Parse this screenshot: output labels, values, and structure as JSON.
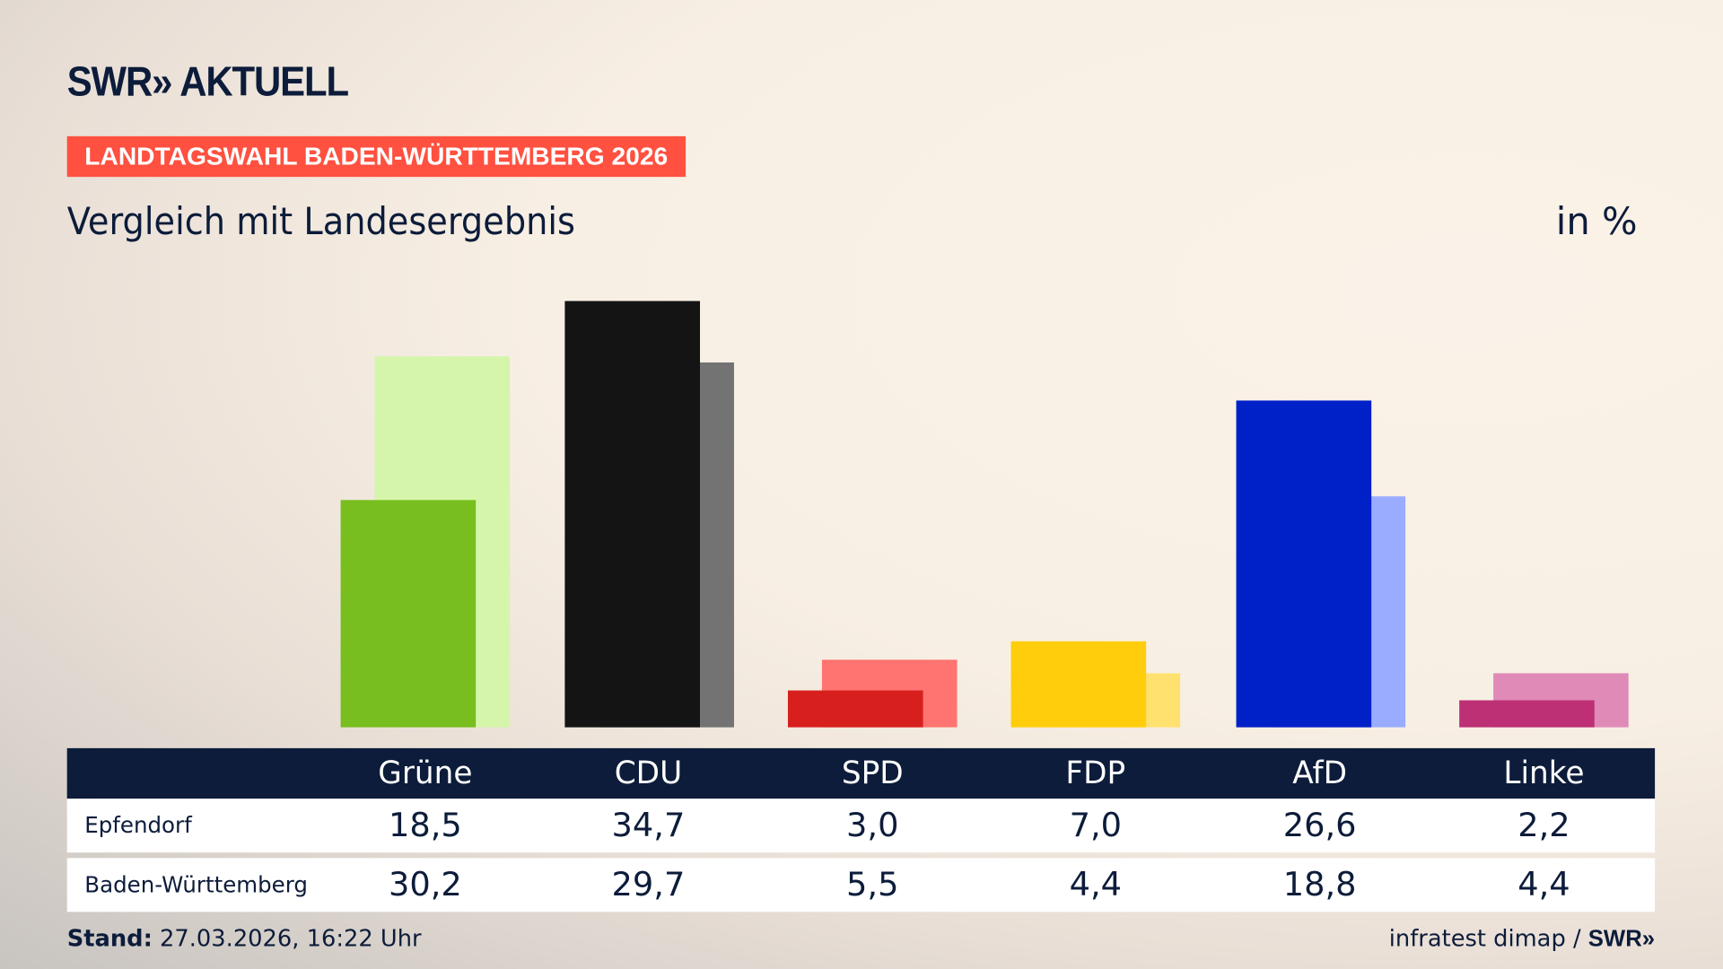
{
  "brand": {
    "logo": "SWR» AKTUELL",
    "badge": "LANDTAGSWAHL BADEN-WÜRTTEMBERG 2026"
  },
  "subtitle": "Vergleich mit Landesergebnis",
  "unit": "in %",
  "chart_data": {
    "type": "bar",
    "categories": [
      "Grüne",
      "CDU",
      "SPD",
      "FDP",
      "AfD",
      "Linke"
    ],
    "series": [
      {
        "name": "Epfendorf",
        "values": [
          18.5,
          34.7,
          3.0,
          7.0,
          26.6,
          2.2
        ],
        "colors": [
          "#78be1e",
          "#141414",
          "#d7201e",
          "#ffcd0c",
          "#0020c8",
          "#bd3075"
        ]
      },
      {
        "name": "Baden-Württemberg",
        "values": [
          30.2,
          29.7,
          5.5,
          4.4,
          18.8,
          4.4
        ],
        "colors": [
          "#d5f5ab",
          "#737373",
          "#ff7470",
          "#ffe170",
          "#9aacff",
          "#e08ab8"
        ]
      }
    ],
    "ylim": [
      0,
      35
    ],
    "grid": false
  },
  "table": {
    "headers": [
      "Grüne",
      "CDU",
      "SPD",
      "FDP",
      "AfD",
      "Linke"
    ],
    "rows": [
      {
        "label": "Epfendorf",
        "values": [
          "18,5",
          "34,7",
          "3,0",
          "7,0",
          "26,6",
          "2,2"
        ]
      },
      {
        "label": "Baden-Württemberg",
        "values": [
          "30,2",
          "29,7",
          "5,5",
          "4,4",
          "18,8",
          "4,4"
        ]
      }
    ]
  },
  "footer": {
    "stand_label": "Stand:",
    "stand_value": " 27.03.2026, 16:22 Uhr",
    "source": "infratest dimap / ",
    "source_logo": "SWR»"
  },
  "colors": {
    "header_bg": "#0c1c3a",
    "badge_bg": "#ff5040"
  }
}
